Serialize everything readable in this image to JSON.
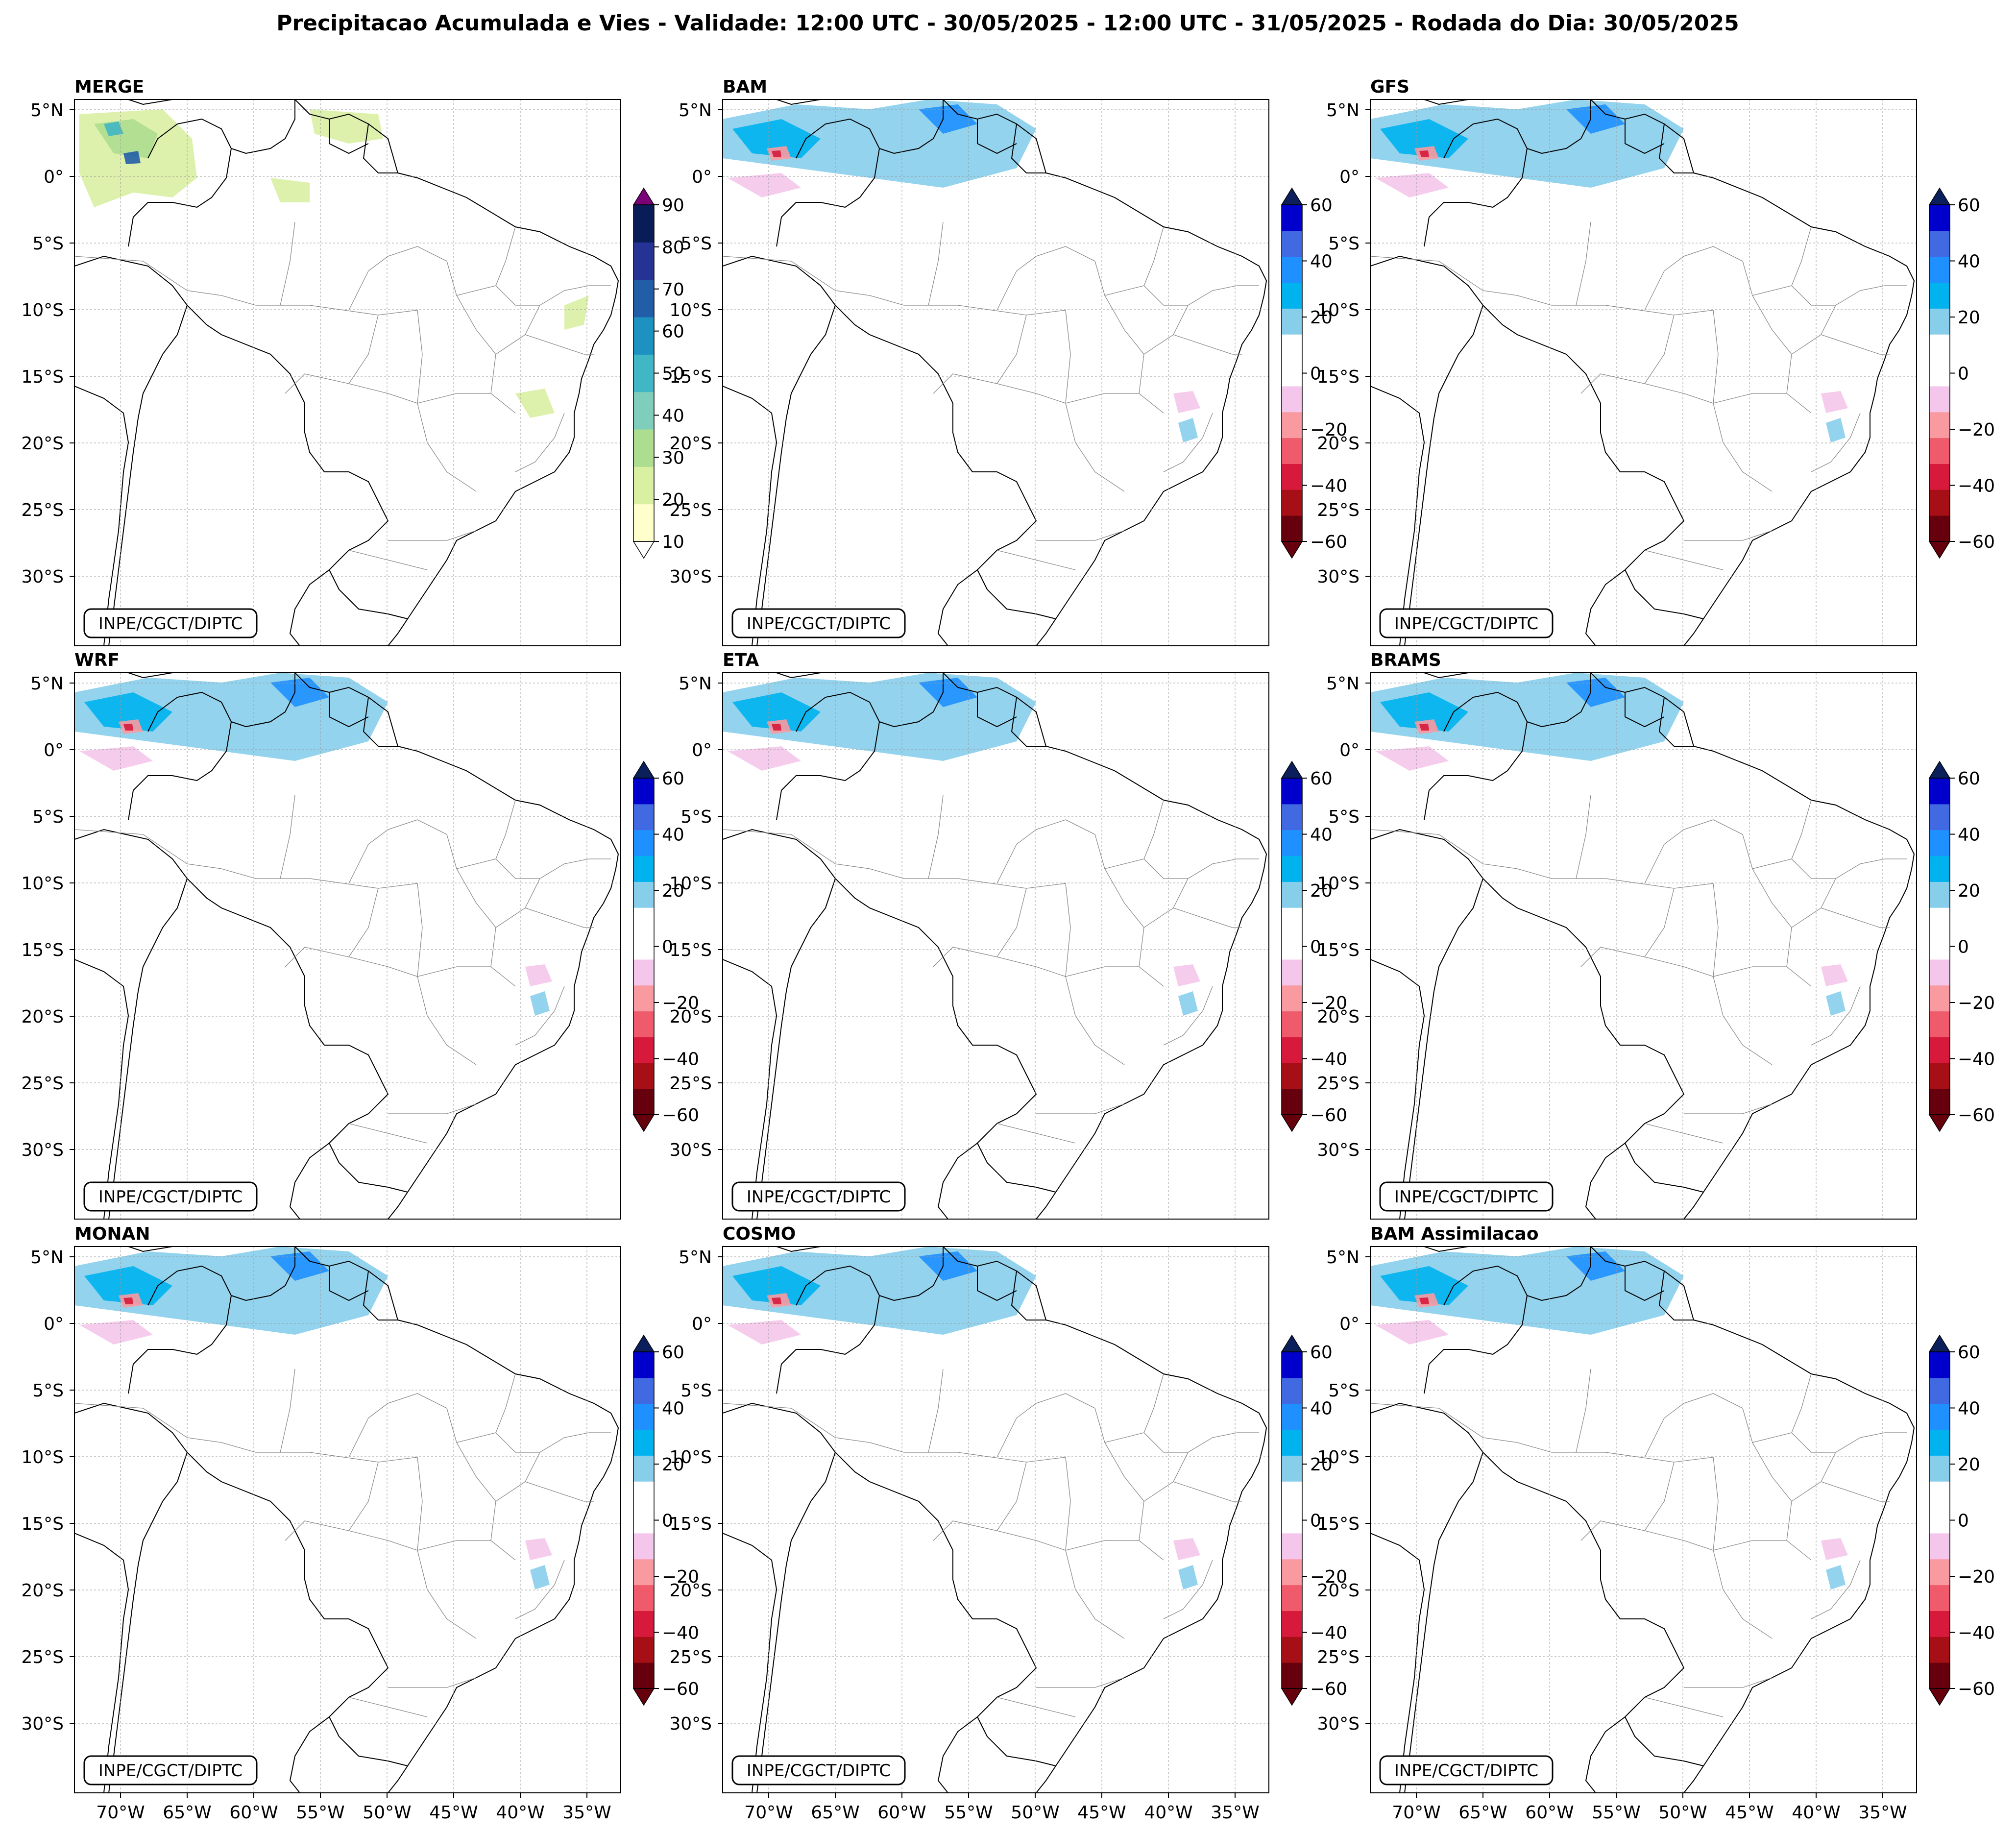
{
  "figure": {
    "title": "Precipitacao Acumulada e Vies - Validade: 12:00 UTC - 30/05/2025 - 12:00 UTC - 31/05/2025 - Rodada do Dia: 30/05/2025",
    "credit": "INPE/CGCT/DIPTC",
    "lat_ticks": [
      "5°N",
      "0°",
      "5°S",
      "10°S",
      "15°S",
      "20°S",
      "25°S",
      "30°S"
    ],
    "lon_ticks": [
      "70°W",
      "65°W",
      "60°W",
      "55°W",
      "50°W",
      "45°W",
      "40°W",
      "35°W"
    ],
    "lon_values": [
      -70,
      -65,
      -60,
      -55,
      -50,
      -45,
      -40,
      -35
    ],
    "lat_values": [
      5,
      0,
      -5,
      -10,
      -15,
      -20,
      -25,
      -30
    ]
  },
  "colorbars": {
    "precip": {
      "ticks": [
        "90",
        "80",
        "70",
        "60",
        "50",
        "40",
        "30",
        "20",
        "10"
      ],
      "colors": [
        "#ffffcc",
        "#d9f0a3",
        "#addd8e",
        "#7fcdbb",
        "#41b6c4",
        "#1d91c0",
        "#225ea8",
        "#253494",
        "#081d58"
      ],
      "extend_max": "#7a0177"
    },
    "bias": {
      "ticks": [
        "60",
        "40",
        "20",
        "0",
        "−20",
        "−40",
        "−60"
      ],
      "colors": [
        "#67000d",
        "#a50f15",
        "#d7193c",
        "#ef5b6b",
        "#f99aa0",
        "#f5c6eb",
        "#ffffff",
        "#ffffff",
        "#87ceeb",
        "#00b2ee",
        "#1e90ff",
        "#4169e1",
        "#0000cd"
      ],
      "extend_max": "#0b1f5c",
      "extend_min": "#67000d"
    }
  },
  "panels": [
    {
      "id": "merge",
      "title": "MERGE",
      "kind": "precip"
    },
    {
      "id": "bam",
      "title": "BAM",
      "kind": "bias"
    },
    {
      "id": "gfs",
      "title": "GFS",
      "kind": "bias"
    },
    {
      "id": "wrf",
      "title": "WRF",
      "kind": "bias"
    },
    {
      "id": "eta",
      "title": "ETA",
      "kind": "bias"
    },
    {
      "id": "brams",
      "title": "BRAMS",
      "kind": "bias"
    },
    {
      "id": "monan",
      "title": "MONAN",
      "kind": "bias"
    },
    {
      "id": "cosmo",
      "title": "COSMO",
      "kind": "bias"
    },
    {
      "id": "bam-assim",
      "title": "BAM Assimilacao",
      "kind": "bias"
    }
  ]
}
